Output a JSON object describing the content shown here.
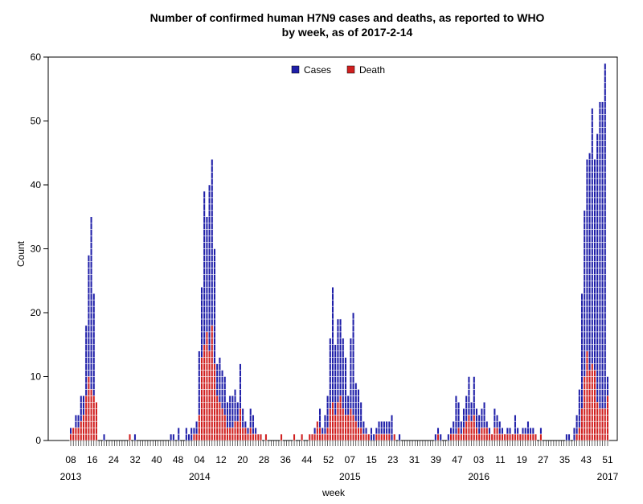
{
  "chart_data": {
    "type": "bar",
    "title": "Number of confirmed human H7N9 cases and deaths, as reported to WHO",
    "subtitle": "by week, as of 2017-2-14",
    "xlabel": "week",
    "ylabel": "Count",
    "ylim": [
      0,
      60
    ],
    "yticks": [
      0,
      10,
      20,
      30,
      40,
      50,
      60
    ],
    "legend_position": "top-center",
    "colors": {
      "cases": "#1f1fa8",
      "death": "#d01f1f",
      "outline": "#ffffff"
    },
    "x_tick_labels": [
      "08",
      "16",
      "24",
      "32",
      "40",
      "48",
      "04",
      "12",
      "20",
      "28",
      "36",
      "44",
      "52",
      "07",
      "15",
      "23",
      "31",
      "39",
      "47",
      "03",
      "11",
      "19",
      "27",
      "35",
      "43",
      "51"
    ],
    "year_labels": [
      "2013",
      "2014",
      "2015",
      "2016",
      "2017"
    ],
    "year_label_tick_index": [
      0,
      6,
      13,
      19,
      25
    ],
    "series": [
      {
        "name": "Cases",
        "values": [
          2,
          2,
          4,
          4,
          7,
          7,
          18,
          29,
          35,
          23,
          6,
          0,
          0,
          1,
          0,
          0,
          0,
          0,
          0,
          0,
          0,
          0,
          0,
          1,
          0,
          1,
          0,
          0,
          0,
          0,
          0,
          0,
          0,
          0,
          0,
          0,
          0,
          0,
          0,
          1,
          1,
          0,
          2,
          0,
          0,
          2,
          1,
          2,
          2,
          3,
          14,
          24,
          39,
          35,
          40,
          44,
          30,
          12,
          13,
          11,
          10,
          6,
          7,
          7,
          8,
          6,
          12,
          5,
          3,
          2,
          5,
          4,
          2,
          1,
          1,
          0,
          1,
          0,
          0,
          0,
          0,
          0,
          1,
          0,
          0,
          0,
          0,
          1,
          0,
          0,
          1,
          0,
          0,
          1,
          1,
          2,
          3,
          5,
          2,
          4,
          7,
          16,
          24,
          15,
          19,
          19,
          16,
          13,
          7,
          16,
          20,
          9,
          8,
          6,
          3,
          2,
          1,
          2,
          1,
          2,
          3,
          3,
          3,
          3,
          3,
          4,
          1,
          0,
          1,
          0,
          0,
          0,
          0,
          0,
          0,
          0,
          0,
          0,
          0,
          0,
          0,
          0,
          1,
          2,
          1,
          0,
          0,
          1,
          2,
          3,
          7,
          6,
          3,
          5,
          7,
          10,
          6,
          10,
          5,
          4,
          5,
          6,
          3,
          2,
          1,
          5,
          4,
          3,
          2,
          1,
          2,
          2,
          1,
          4,
          2,
          1,
          2,
          2,
          3,
          2,
          2,
          1,
          0,
          2,
          0,
          0,
          0,
          0,
          0,
          0,
          0,
          0,
          0,
          1,
          1,
          0,
          2,
          4,
          8,
          23,
          36,
          44,
          45,
          52,
          44,
          48,
          53,
          53,
          59,
          10
        ]
      },
      {
        "name": "Death",
        "values": [
          1,
          2,
          2,
          2,
          3,
          4,
          7,
          10,
          8,
          7,
          6,
          0,
          0,
          0,
          0,
          0,
          0,
          0,
          0,
          0,
          0,
          0,
          0,
          1,
          0,
          0,
          0,
          0,
          0,
          0,
          0,
          0,
          0,
          0,
          0,
          0,
          0,
          0,
          0,
          0,
          0,
          0,
          0,
          0,
          0,
          0,
          0,
          0,
          1,
          1,
          4,
          13,
          15,
          17,
          14,
          18,
          12,
          7,
          6,
          5,
          4,
          2,
          2,
          2,
          3,
          3,
          5,
          2,
          2,
          1,
          2,
          1,
          1,
          1,
          1,
          0,
          1,
          0,
          0,
          0,
          0,
          0,
          1,
          0,
          0,
          0,
          0,
          1,
          0,
          0,
          1,
          0,
          0,
          1,
          1,
          1,
          3,
          2,
          1,
          1,
          2,
          5,
          6,
          4,
          6,
          7,
          5,
          4,
          4,
          5,
          4,
          3,
          2,
          2,
          1,
          1,
          1,
          0,
          0,
          1,
          1,
          1,
          1,
          1,
          1,
          0,
          1,
          0,
          0,
          0,
          0,
          0,
          0,
          0,
          0,
          0,
          0,
          0,
          0,
          0,
          0,
          0,
          0,
          1,
          0,
          0,
          0,
          0,
          1,
          1,
          1,
          2,
          1,
          2,
          3,
          4,
          3,
          4,
          2,
          1,
          2,
          2,
          2,
          1,
          1,
          2,
          2,
          1,
          1,
          1,
          1,
          1,
          1,
          1,
          1,
          1,
          1,
          1,
          1,
          1,
          1,
          1,
          0,
          1,
          0,
          0,
          0,
          0,
          0,
          0,
          0,
          0,
          0,
          0,
          0,
          0,
          0,
          1,
          2,
          5,
          10,
          14,
          11,
          12,
          11,
          6,
          5,
          5,
          5,
          7
        ]
      }
    ]
  }
}
